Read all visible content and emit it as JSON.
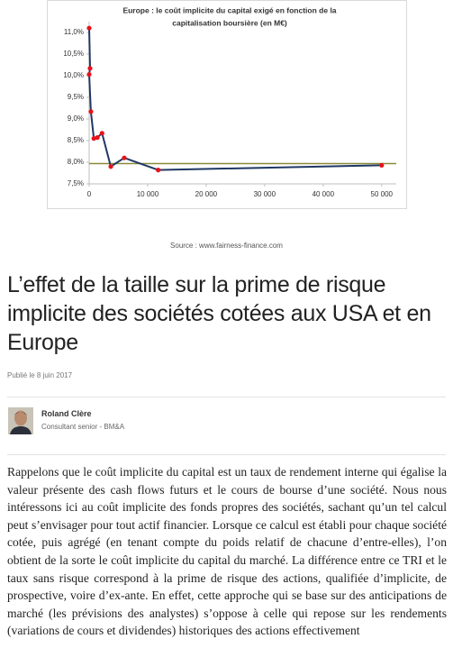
{
  "chart_data": {
    "type": "line",
    "title": [
      "Europe : le coût implicite du capital exigé en fonction  de la",
      "capitalisation boursière (en M€)"
    ],
    "x": [
      0,
      150,
      0,
      300,
      800,
      1400,
      2200,
      3700,
      6000,
      11800,
      50000
    ],
    "series": [
      {
        "name": "Europe",
        "color": "#1f3864",
        "marker_color": "#e8121a",
        "values": [
          11.1,
          10.17,
          10.03,
          9.17,
          8.55,
          8.57,
          8.67,
          7.9,
          8.1,
          7.82,
          7.93
        ]
      }
    ],
    "reference_line": {
      "value": 7.97,
      "color": "#8b8b3a"
    },
    "xlim": [
      0,
      52500
    ],
    "xticks": [
      0,
      {
        "value": 10000,
        "label": "10 000"
      },
      {
        "value": 20000,
        "label": "20 000"
      },
      {
        "value": 30000,
        "label": "30 000"
      },
      {
        "value": 40000,
        "label": "40 000"
      },
      {
        "value": 50000,
        "label": "50 000"
      }
    ],
    "ylim": [
      7.5,
      11.25
    ],
    "yticks": [
      {
        "value": 7.5,
        "label": "7,5%"
      },
      {
        "value": 8.0,
        "label": "8,0%"
      },
      {
        "value": 8.5,
        "label": "8,5%"
      },
      {
        "value": 9.0,
        "label": "9,0%"
      },
      {
        "value": 9.5,
        "label": "9,5%"
      },
      {
        "value": 10.0,
        "label": "10,0%"
      },
      {
        "value": 10.5,
        "label": "10,5%"
      },
      {
        "value": 11.0,
        "label": "11,0%"
      }
    ],
    "grid": false
  },
  "article": {
    "source": "Source : www.fairness-finance.com",
    "title": "L’effet de la taille sur la prime de risque implicite des sociétés cotées aux USA et en Europe",
    "published": "Publié le 8 juin 2017",
    "author": "Roland Clère",
    "role": "Consultant senior - BM&A",
    "body": "Rappelons que le coût implicite du capital est un taux de rendement interne qui égalise la valeur présente des cash flows futurs et le cours de bourse d’une société. Nous nous intéressons ici au coût implicite des fonds propres des sociétés, sachant qu’un tel calcul peut s’envisager pour tout actif financier. Lorsque ce calcul est établi pour chaque société cotée, puis agrégé (en tenant compte du poids relatif de chacune d’entre-elles), l’on obtient de la sorte le coût implicite du capital du marché. La différence entre ce TRI et le taux sans risque correspond à la prime de risque des actions, qualifiée d’implicite, de prospective, voire d’ex-ante. En effet, cette approche qui se base sur des anticipations de marché (les prévisions des analystes) s’oppose à celle qui repose sur les rendements (variations de cours et dividendes) historiques des actions effectivement"
  }
}
